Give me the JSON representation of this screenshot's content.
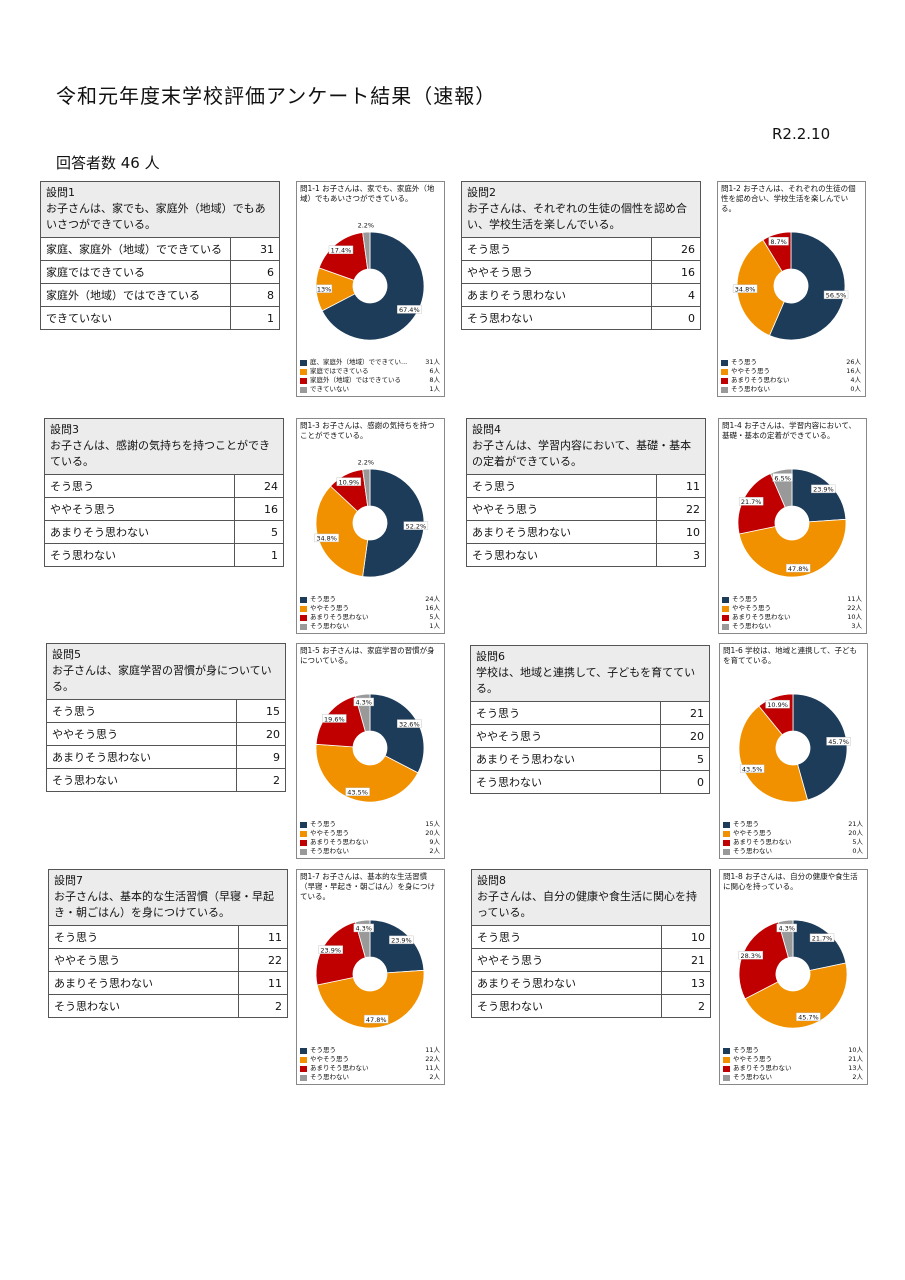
{
  "page": {
    "title": "令和元年度末学校評価アンケート結果（速報）",
    "date": "R2.2.10",
    "respondents": "回答者数 46 人"
  },
  "colors": {
    "c1": "#1d3c5a",
    "c2": "#f29100",
    "c3": "#c00000",
    "c4": "#999999"
  },
  "questions": [
    {
      "num": "設問1",
      "text": "お子さんは、家でも、家庭外（地域）でもあいさつができている。",
      "rows": [
        {
          "label": "家庭、家庭外（地域）でできている",
          "count": "31"
        },
        {
          "label": "家庭ではできている",
          "count": "6"
        },
        {
          "label": "家庭外（地域）ではできている",
          "count": "8"
        },
        {
          "label": "できていない",
          "count": "1"
        }
      ]
    },
    {
      "num": "設問2",
      "text": "お子さんは、それぞれの生徒の個性を認め合い、学校生活を楽しんでいる。",
      "rows": [
        {
          "label": "そう思う",
          "count": "26"
        },
        {
          "label": "ややそう思う",
          "count": "16"
        },
        {
          "label": "あまりそう思わない",
          "count": "4"
        },
        {
          "label": "そう思わない",
          "count": "0"
        }
      ]
    },
    {
      "num": "設問3",
      "text": "お子さんは、感謝の気持ちを持つことができている。",
      "rows": [
        {
          "label": "そう思う",
          "count": "24"
        },
        {
          "label": "ややそう思う",
          "count": "16"
        },
        {
          "label": "あまりそう思わない",
          "count": "5"
        },
        {
          "label": "そう思わない",
          "count": "1"
        }
      ]
    },
    {
      "num": "設問4",
      "text": "お子さんは、学習内容において、基礎・基本の定着ができている。",
      "rows": [
        {
          "label": "そう思う",
          "count": "11"
        },
        {
          "label": "ややそう思う",
          "count": "22"
        },
        {
          "label": "あまりそう思わない",
          "count": "10"
        },
        {
          "label": "そう思わない",
          "count": "3"
        }
      ]
    },
    {
      "num": "設問5",
      "text": "お子さんは、家庭学習の習慣が身についている。",
      "rows": [
        {
          "label": "そう思う",
          "count": "15"
        },
        {
          "label": "ややそう思う",
          "count": "20"
        },
        {
          "label": "あまりそう思わない",
          "count": "9"
        },
        {
          "label": "そう思わない",
          "count": "2"
        }
      ]
    },
    {
      "num": "設問6",
      "text": "学校は、地域と連携して、子どもを育てている。",
      "rows": [
        {
          "label": "そう思う",
          "count": "21"
        },
        {
          "label": "ややそう思う",
          "count": "20"
        },
        {
          "label": "あまりそう思わない",
          "count": "5"
        },
        {
          "label": "そう思わない",
          "count": "0"
        }
      ]
    },
    {
      "num": "設問7",
      "text": "お子さんは、基本的な生活習慣（早寝・早起き・朝ごはん）を身につけている。",
      "rows": [
        {
          "label": "そう思う",
          "count": "11"
        },
        {
          "label": "ややそう思う",
          "count": "22"
        },
        {
          "label": "あまりそう思わない",
          "count": "11"
        },
        {
          "label": "そう思わない",
          "count": "2"
        }
      ]
    },
    {
      "num": "設問8",
      "text": "お子さんは、自分の健康や食生活に関心を持っている。",
      "rows": [
        {
          "label": "そう思う",
          "count": "10"
        },
        {
          "label": "ややそう思う",
          "count": "21"
        },
        {
          "label": "あまりそう思わない",
          "count": "13"
        },
        {
          "label": "そう思わない",
          "count": "2"
        }
      ]
    }
  ],
  "chart_data": [
    {
      "type": "pie",
      "title": "問1-1 お子さんは、家でも、家庭外（地域）でもあいさつができている。",
      "labels": [
        "庭、家庭外（地域）でできてい...",
        "家庭ではできている",
        "家庭外（地域）ではできている",
        "できていない"
      ],
      "values": [
        31,
        6,
        8,
        1
      ],
      "value_labels": [
        "31人",
        "6人",
        "8人",
        "1人"
      ],
      "percent_labels": [
        "67.4%",
        "13%",
        "17.4%",
        "2.2%"
      ]
    },
    {
      "type": "pie",
      "title": "問1-2 お子さんは、それぞれの生徒の個性を認め合い、学校生活を楽しんでいる。",
      "labels": [
        "そう思う",
        "ややそう思う",
        "あまりそう思わない",
        "そう思わない"
      ],
      "values": [
        26,
        16,
        4,
        0
      ],
      "value_labels": [
        "26人",
        "16人",
        "4人",
        "0人"
      ],
      "percent_labels": [
        "56.5%",
        "34.8%",
        "8.7%",
        ""
      ]
    },
    {
      "type": "pie",
      "title": "問1-3 お子さんは、感謝の気持ちを持つことができている。",
      "labels": [
        "そう思う",
        "ややそう思う",
        "あまりそう思わない",
        "そう思わない"
      ],
      "values": [
        24,
        16,
        5,
        1
      ],
      "value_labels": [
        "24人",
        "16人",
        "5人",
        "1人"
      ],
      "percent_labels": [
        "52.2%",
        "34.8%",
        "10.9%",
        "2.2%"
      ]
    },
    {
      "type": "pie",
      "title": "問1-4 お子さんは、学習内容において、基礎・基本の定着ができている。",
      "labels": [
        "そう思う",
        "ややそう思う",
        "あまりそう思わない",
        "そう思わない"
      ],
      "values": [
        11,
        22,
        10,
        3
      ],
      "value_labels": [
        "11人",
        "22人",
        "10人",
        "3人"
      ],
      "percent_labels": [
        "23.9%",
        "47.8%",
        "21.7%",
        "6.5%"
      ]
    },
    {
      "type": "pie",
      "title": "問1-5 お子さんは、家庭学習の習慣が身についている。",
      "labels": [
        "そう思う",
        "ややそう思う",
        "あまりそう思わない",
        "そう思わない"
      ],
      "values": [
        15,
        20,
        9,
        2
      ],
      "value_labels": [
        "15人",
        "20人",
        "9人",
        "2人"
      ],
      "percent_labels": [
        "32.6%",
        "43.5%",
        "19.6%",
        "4.3%"
      ]
    },
    {
      "type": "pie",
      "title": "問1-6 学校は、地域と連携して、子どもを育てている。",
      "labels": [
        "そう思う",
        "ややそう思う",
        "あまりそう思わない",
        "そう思わない"
      ],
      "values": [
        21,
        20,
        5,
        0
      ],
      "value_labels": [
        "21人",
        "20人",
        "5人",
        "0人"
      ],
      "percent_labels": [
        "45.7%",
        "43.5%",
        "10.9%",
        ""
      ]
    },
    {
      "type": "pie",
      "title": "問1-7 お子さんは、基本的な生活習慣（早寝・早起き・朝ごはん）を身につけている。",
      "labels": [
        "そう思う",
        "ややそう思う",
        "あまりそう思わない",
        "そう思わない"
      ],
      "values": [
        11,
        22,
        11,
        2
      ],
      "value_labels": [
        "11人",
        "22人",
        "11人",
        "2人"
      ],
      "percent_labels": [
        "23.9%",
        "47.8%",
        "23.9%",
        "4.3%"
      ]
    },
    {
      "type": "pie",
      "title": "問1-8 お子さんは、自分の健康や食生活に関心を持っている。",
      "labels": [
        "そう思う",
        "ややそう思う",
        "あまりそう思わない",
        "そう思わない"
      ],
      "values": [
        10,
        21,
        13,
        2
      ],
      "value_labels": [
        "10人",
        "21人",
        "13人",
        "2人"
      ],
      "percent_labels": [
        "21.7%",
        "45.7%",
        "28.3%",
        "4.3%"
      ]
    }
  ]
}
